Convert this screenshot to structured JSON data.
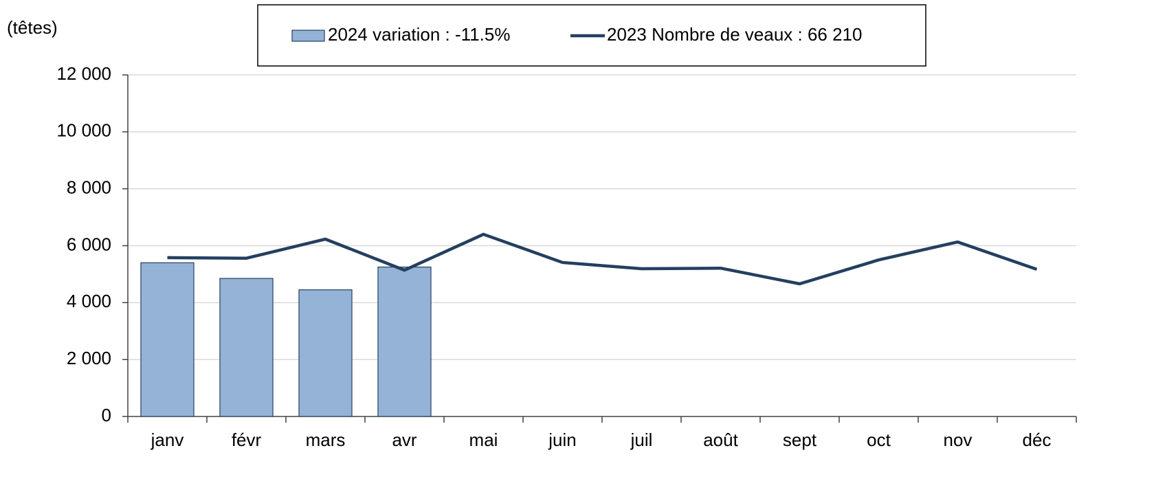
{
  "chart_data": {
    "type": "bar",
    "y_label": "(têtes)",
    "categories": [
      "janv",
      "févr",
      "mars",
      "avr",
      "mai",
      "juin",
      "juil",
      "août",
      "sept",
      "oct",
      "nov",
      "déc"
    ],
    "series": [
      {
        "name": "2024 variation : -11.5%",
        "type": "bar",
        "color": "#95b3d7",
        "values": [
          5400,
          4850,
          4450,
          5250,
          null,
          null,
          null,
          null,
          null,
          null,
          null,
          null
        ]
      },
      {
        "name": "2023 Nombre de veaux : 66 210",
        "type": "line",
        "color": "#243f60",
        "values": [
          5580,
          5560,
          6230,
          5140,
          6400,
          5410,
          5190,
          5210,
          4660,
          5500,
          6130,
          5170
        ]
      }
    ],
    "ylim": [
      0,
      12000
    ],
    "yticks": [
      0,
      {
        "value": 2000,
        "label": "2 000"
      },
      {
        "value": 4000,
        "label": "4 000"
      },
      {
        "value": 6000,
        "label": "6 000"
      },
      {
        "value": 8000,
        "label": "8 000"
      },
      {
        "value": 10000,
        "label": "10 000"
      },
      {
        "value": 12000,
        "label": "12 000"
      }
    ],
    "grid": true,
    "legend": "top"
  }
}
